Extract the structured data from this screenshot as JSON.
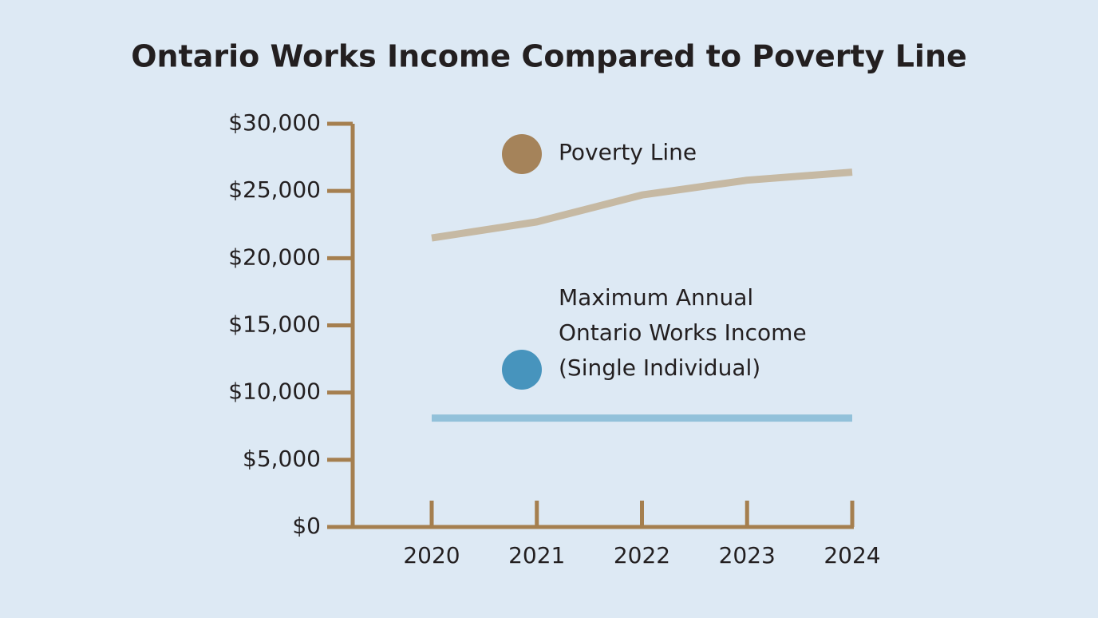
{
  "chart_data": {
    "type": "line",
    "title": "Ontario Works Income Compared to Poverty Line",
    "categories": [
      "2020",
      "2021",
      "2022",
      "2023",
      "2024"
    ],
    "series": [
      {
        "name": "Poverty Line",
        "color": "#c6b9a3",
        "marker_color": "#a5835a",
        "values": [
          21500,
          22700,
          24700,
          25800,
          26400
        ]
      },
      {
        "name": "Maximum Annual Ontario Works Income (Single Individual)",
        "color": "#92c1da",
        "marker_color": "#4794bd",
        "values": [
          8100,
          8100,
          8100,
          8100,
          8100
        ]
      }
    ],
    "ylim": [
      0,
      30000
    ],
    "yticks": [
      {
        "value": 0,
        "label": "$0"
      },
      {
        "value": 5000,
        "label": "$5,000"
      },
      {
        "value": 10000,
        "label": "$10,000"
      },
      {
        "value": 15000,
        "label": "$15,000"
      },
      {
        "value": 20000,
        "label": "$20,000"
      },
      {
        "value": 25000,
        "label": "$25,000"
      },
      {
        "value": 30000,
        "label": "$30,000"
      }
    ],
    "axis_color": "#a57f4f",
    "grid": false
  }
}
